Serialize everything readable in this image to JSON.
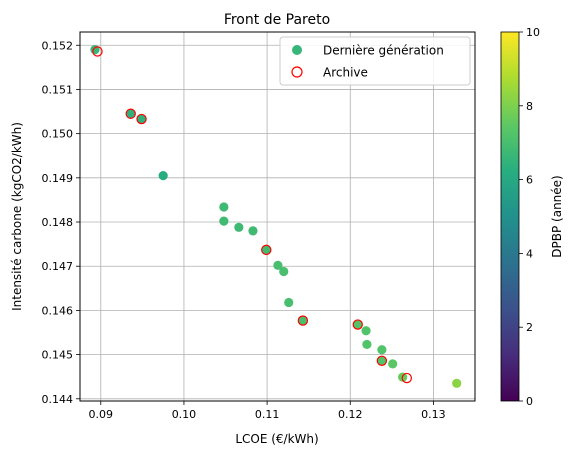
{
  "chart_data": {
    "type": "scatter",
    "title": "Front de Pareto",
    "xlabel": "LCOE (€/kWh)",
    "ylabel": "Intensité carbone (kgCO2/kWh)",
    "xlim": [
      0.0875,
      0.135
    ],
    "ylim": [
      0.14395,
      0.1523
    ],
    "xticks": [
      0.09,
      0.1,
      0.11,
      0.12,
      0.13
    ],
    "xtick_labels": [
      "0.09",
      "0.10",
      "0.11",
      "0.12",
      "0.13"
    ],
    "yticks": [
      0.144,
      0.145,
      0.146,
      0.147,
      0.148,
      0.149,
      0.15,
      0.151,
      0.152
    ],
    "ytick_labels": [
      "0.144",
      "0.145",
      "0.146",
      "0.147",
      "0.148",
      "0.149",
      "0.150",
      "0.151",
      "0.152"
    ],
    "grid": true,
    "legend_position": "top-right",
    "series": [
      {
        "name": "Dernière génération",
        "marker": "filled-circle",
        "points": [
          {
            "x": 0.0893,
            "y": 0.1519,
            "c": 6.6
          },
          {
            "x": 0.0936,
            "y": 0.15045,
            "c": 6.4
          },
          {
            "x": 0.0949,
            "y": 0.15033,
            "c": 6.4
          },
          {
            "x": 0.0975,
            "y": 0.14905,
            "c": 6.2
          },
          {
            "x": 0.1048,
            "y": 0.14834,
            "c": 6.8
          },
          {
            "x": 0.1048,
            "y": 0.14802,
            "c": 6.8
          },
          {
            "x": 0.1066,
            "y": 0.14788,
            "c": 6.8
          },
          {
            "x": 0.1083,
            "y": 0.1478,
            "c": 6.8
          },
          {
            "x": 0.1099,
            "y": 0.14737,
            "c": 6.8
          },
          {
            "x": 0.1113,
            "y": 0.14702,
            "c": 7.0
          },
          {
            "x": 0.112,
            "y": 0.14688,
            "c": 7.0
          },
          {
            "x": 0.1126,
            "y": 0.14618,
            "c": 7.0
          },
          {
            "x": 0.1143,
            "y": 0.14577,
            "c": 7.0
          },
          {
            "x": 0.1209,
            "y": 0.14568,
            "c": 7.2
          },
          {
            "x": 0.1219,
            "y": 0.14554,
            "c": 7.2
          },
          {
            "x": 0.122,
            "y": 0.14523,
            "c": 7.2
          },
          {
            "x": 0.1238,
            "y": 0.14511,
            "c": 7.2
          },
          {
            "x": 0.1238,
            "y": 0.14486,
            "c": 7.2
          },
          {
            "x": 0.1251,
            "y": 0.14479,
            "c": 7.4
          },
          {
            "x": 0.1263,
            "y": 0.14449,
            "c": 7.6
          },
          {
            "x": 0.1328,
            "y": 0.14435,
            "c": 8.2
          }
        ]
      },
      {
        "name": "Archive",
        "marker": "hollow-circle",
        "color": "#ff0000",
        "points": [
          {
            "x": 0.0896,
            "y": 0.15186
          },
          {
            "x": 0.0936,
            "y": 0.15045
          },
          {
            "x": 0.0949,
            "y": 0.15033
          },
          {
            "x": 0.1099,
            "y": 0.14737
          },
          {
            "x": 0.1143,
            "y": 0.14577
          },
          {
            "x": 0.1209,
            "y": 0.14568
          },
          {
            "x": 0.1238,
            "y": 0.14486
          },
          {
            "x": 0.1268,
            "y": 0.14447
          }
        ]
      }
    ],
    "colorbar": {
      "label": "DPBP (année)",
      "colormap": "viridis",
      "range": [
        0,
        10
      ],
      "ticks": [
        0,
        2,
        4,
        6,
        8,
        10
      ],
      "tick_labels": [
        "0",
        "2",
        "4",
        "6",
        "8",
        "10"
      ]
    },
    "legend_swatch_value": 6.6
  }
}
